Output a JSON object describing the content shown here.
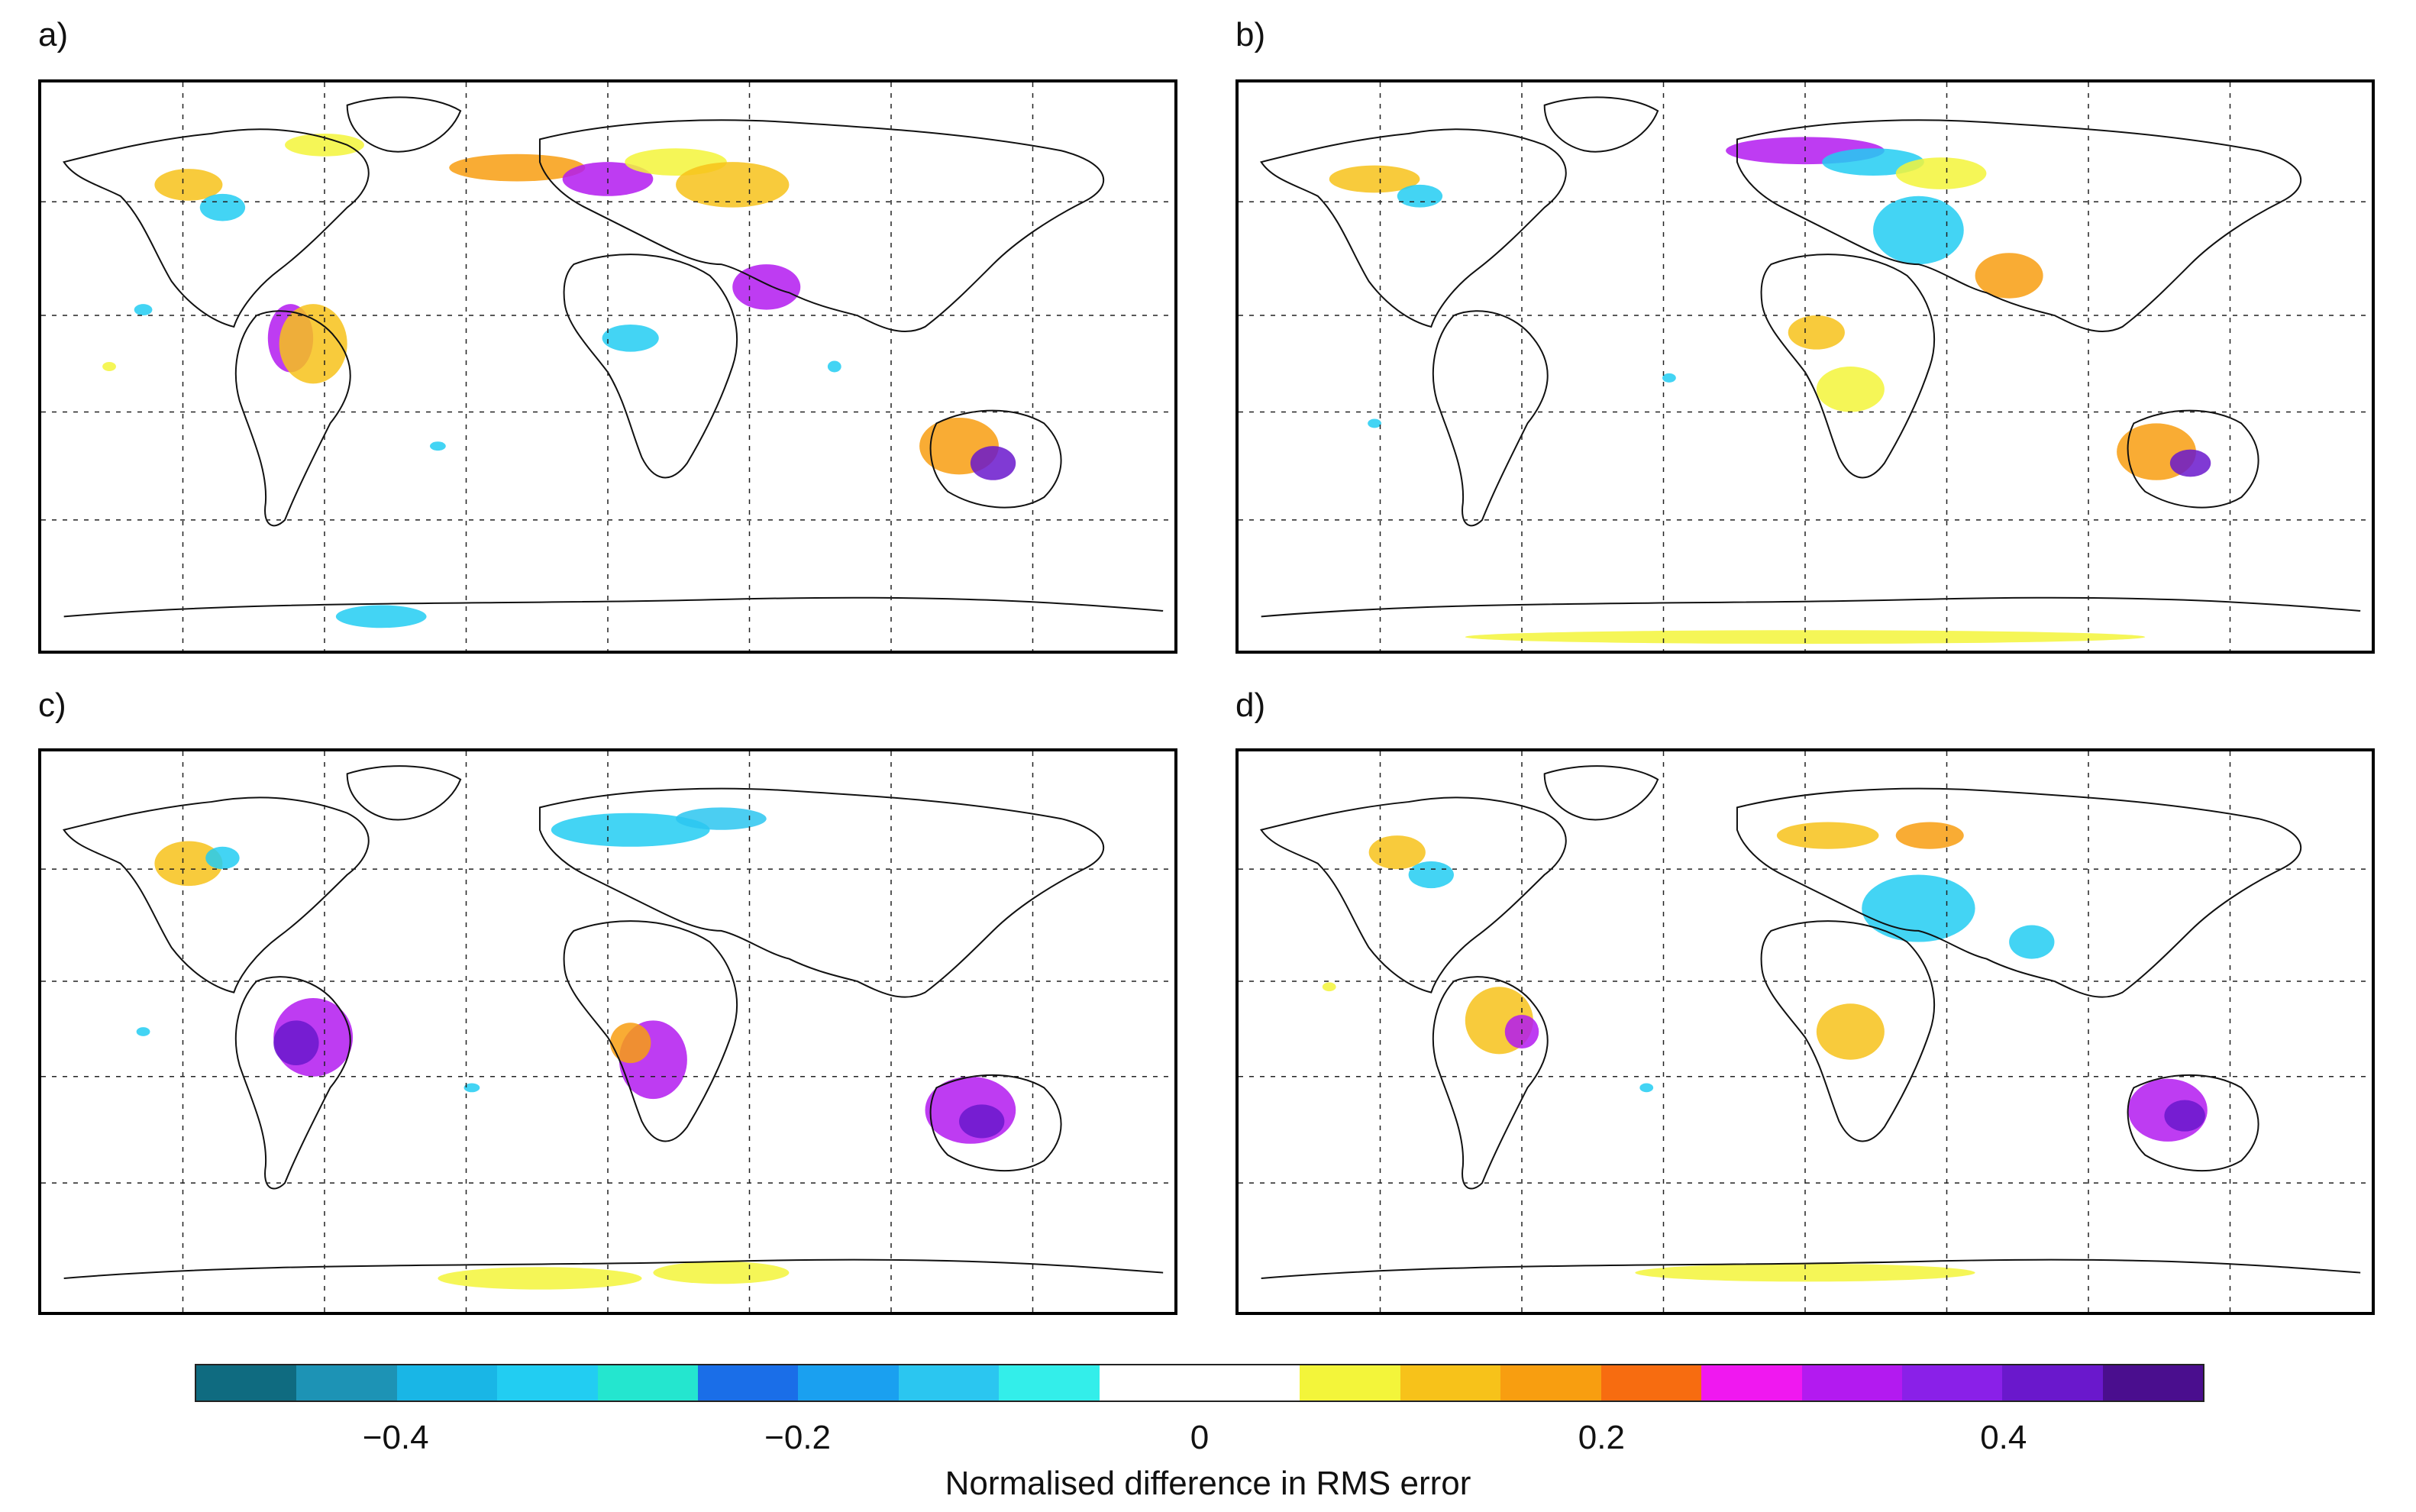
{
  "panels": [
    {
      "label": "a)",
      "id": "a"
    },
    {
      "label": "b)",
      "id": "b"
    },
    {
      "label": "c)",
      "id": "c"
    },
    {
      "label": "d)",
      "id": "d"
    }
  ],
  "colorbar": {
    "title": "Normalised difference in RMS error",
    "ticks": [
      {
        "value": -0.4,
        "label": "−0.4"
      },
      {
        "value": -0.2,
        "label": "−0.2"
      },
      {
        "value": 0,
        "label": "0"
      },
      {
        "value": 0.2,
        "label": "0.2"
      },
      {
        "value": 0.4,
        "label": "0.4"
      }
    ],
    "range": [
      -0.5,
      0.5
    ],
    "colors": [
      "#0f6b80",
      "#1d93b5",
      "#19b6e6",
      "#22cdf2",
      "#24e6cf",
      "#1a6ee8",
      "#1aa0f0",
      "#2bc6f0",
      "#33eeea",
      "#ffffff",
      "#ffffff",
      "#f3f53a",
      "#f7c21a",
      "#f89e10",
      "#f76c10",
      "#f018f0",
      "#b31af0",
      "#8a20e8",
      "#6a18cc",
      "#4a0e8e"
    ]
  }
}
